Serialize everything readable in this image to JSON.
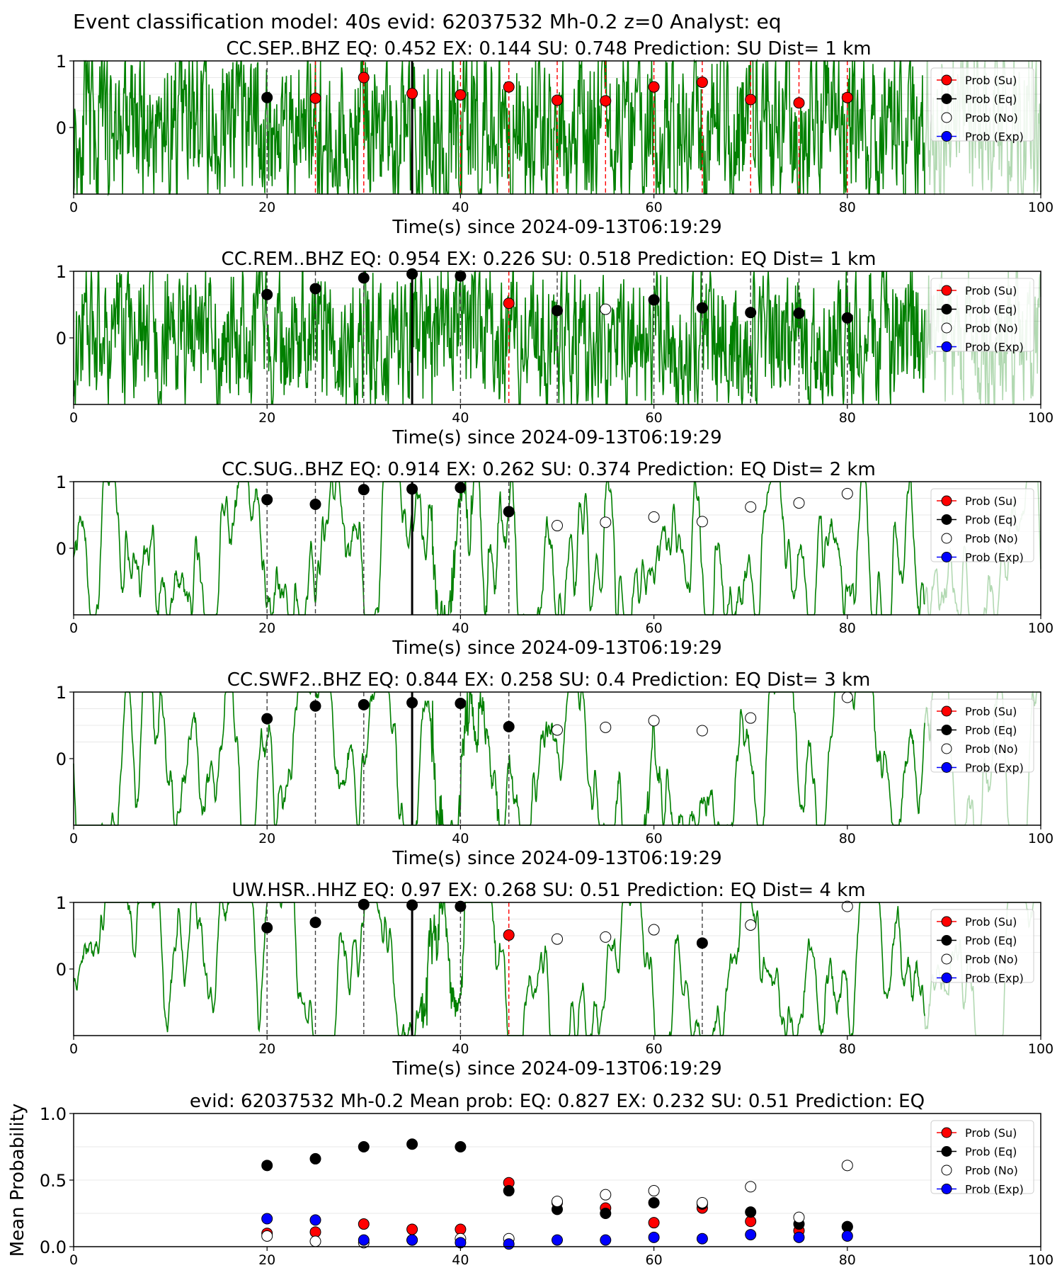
{
  "figure": {
    "suptitle": "Event classification model: 40s evid: 62037532 Mh-0.2 z=0 Analyst: eq"
  },
  "colors": {
    "waveform": "#008000",
    "su": "#ff0000",
    "eq": "#000000",
    "no": "#ffffff",
    "exp": "#0000ff",
    "pick": "#000000",
    "window_eq": "#404040",
    "window_su": "#ff0000"
  },
  "legend_labels": [
    "Prob (Su)",
    "Prob (Eq)",
    "Prob (No)",
    "Prob (Exp)"
  ],
  "chart_data": [
    {
      "type": "scatter",
      "title": "CC.SEP..BHZ   EQ: 0.452  EX: 0.144  SU: 0.748   Prediction: SU    Dist= 1 km",
      "xlabel": "Time(s) since 2024-09-13T06:19:29",
      "ylabel": "",
      "xlim": [
        0,
        100
      ],
      "ylim": [
        -1,
        1
      ],
      "yticks": [
        0,
        1
      ],
      "xticks": [
        0,
        20,
        40,
        60,
        80,
        100
      ],
      "legend": "right",
      "pick_time": 35,
      "waveform": {
        "seed": 11,
        "amp": 0.07,
        "smooth": 0.5,
        "bursts": [
          {
            "t": 24.5,
            "amp": 0.9,
            "decay": 4.5
          },
          {
            "t": 37.5,
            "amp": 0.75,
            "decay": 4.0
          },
          {
            "t": 87,
            "amp": 0.35,
            "decay": 5
          }
        ]
      },
      "windows": [
        {
          "t": 20,
          "cls": "eq"
        },
        {
          "t": 25,
          "cls": "su"
        },
        {
          "t": 30,
          "cls": "su"
        },
        {
          "t": 35,
          "cls": "su"
        },
        {
          "t": 40,
          "cls": "su"
        },
        {
          "t": 45,
          "cls": "su"
        },
        {
          "t": 50,
          "cls": "su"
        },
        {
          "t": 55,
          "cls": "su"
        },
        {
          "t": 60,
          "cls": "su"
        },
        {
          "t": 65,
          "cls": "su"
        },
        {
          "t": 70,
          "cls": "su"
        },
        {
          "t": 75,
          "cls": "su"
        },
        {
          "t": 80,
          "cls": "su"
        }
      ],
      "points": [
        {
          "t": 20,
          "p": 0.45,
          "cls": "eq"
        },
        {
          "t": 25,
          "p": 0.44,
          "cls": "su"
        },
        {
          "t": 30,
          "p": 0.75,
          "cls": "su"
        },
        {
          "t": 35,
          "p": 0.51,
          "cls": "su"
        },
        {
          "t": 40,
          "p": 0.49,
          "cls": "su"
        },
        {
          "t": 45,
          "p": 0.61,
          "cls": "su"
        },
        {
          "t": 50,
          "p": 0.41,
          "cls": "su"
        },
        {
          "t": 55,
          "p": 0.4,
          "cls": "su"
        },
        {
          "t": 60,
          "p": 0.61,
          "cls": "su"
        },
        {
          "t": 65,
          "p": 0.68,
          "cls": "su"
        },
        {
          "t": 70,
          "p": 0.42,
          "cls": "su"
        },
        {
          "t": 75,
          "p": 0.37,
          "cls": "su"
        },
        {
          "t": 80,
          "p": 0.45,
          "cls": "su"
        }
      ]
    },
    {
      "type": "scatter",
      "title": "CC.REM..BHZ   EQ: 0.954  EX: 0.226  SU: 0.518   Prediction: EQ    Dist= 1 km",
      "xlabel": "Time(s) since 2024-09-13T06:19:29",
      "ylabel": "",
      "xlim": [
        0,
        100
      ],
      "ylim": [
        -1,
        1
      ],
      "yticks": [
        0,
        1
      ],
      "xticks": [
        0,
        20,
        40,
        60,
        80,
        100
      ],
      "legend": "right",
      "pick_time": 35,
      "waveform": {
        "seed": 23,
        "amp": 0.06,
        "smooth": 0.5,
        "bursts": [
          {
            "t": 25,
            "amp": 0.45,
            "decay": 4
          },
          {
            "t": 36,
            "amp": 1.0,
            "decay": 3.5
          },
          {
            "t": 60,
            "amp": 0.12,
            "decay": 6
          },
          {
            "t": 86,
            "amp": 0.35,
            "decay": 4
          }
        ]
      },
      "windows": [
        {
          "t": 20,
          "cls": "eq"
        },
        {
          "t": 25,
          "cls": "eq"
        },
        {
          "t": 30,
          "cls": "eq"
        },
        {
          "t": 35,
          "cls": "eq"
        },
        {
          "t": 40,
          "cls": "eq"
        },
        {
          "t": 45,
          "cls": "su"
        },
        {
          "t": 50,
          "cls": "eq"
        },
        {
          "t": 60,
          "cls": "eq"
        },
        {
          "t": 65,
          "cls": "eq"
        },
        {
          "t": 70,
          "cls": "eq"
        },
        {
          "t": 75,
          "cls": "eq"
        },
        {
          "t": 80,
          "cls": "eq"
        }
      ],
      "points": [
        {
          "t": 20,
          "p": 0.65,
          "cls": "eq"
        },
        {
          "t": 25,
          "p": 0.74,
          "cls": "eq"
        },
        {
          "t": 30,
          "p": 0.9,
          "cls": "eq"
        },
        {
          "t": 35,
          "p": 0.96,
          "cls": "eq"
        },
        {
          "t": 40,
          "p": 0.93,
          "cls": "eq"
        },
        {
          "t": 45,
          "p": 0.52,
          "cls": "su"
        },
        {
          "t": 50,
          "p": 0.41,
          "cls": "eq"
        },
        {
          "t": 55,
          "p": 0.43,
          "cls": "no"
        },
        {
          "t": 60,
          "p": 0.57,
          "cls": "eq"
        },
        {
          "t": 65,
          "p": 0.45,
          "cls": "eq"
        },
        {
          "t": 70,
          "p": 0.38,
          "cls": "eq"
        },
        {
          "t": 75,
          "p": 0.37,
          "cls": "eq"
        },
        {
          "t": 80,
          "p": 0.3,
          "cls": "eq"
        }
      ]
    },
    {
      "type": "scatter",
      "title": "CC.SUG..BHZ   EQ: 0.914  EX: 0.262  SU: 0.374   Prediction: EQ    Dist= 2 km",
      "xlabel": "Time(s) since 2024-09-13T06:19:29",
      "ylabel": "",
      "xlim": [
        0,
        100
      ],
      "ylim": [
        -1,
        1
      ],
      "yticks": [
        0,
        1
      ],
      "xticks": [
        0,
        20,
        40,
        60,
        80,
        100
      ],
      "legend": "right",
      "pick_time": 35,
      "waveform": {
        "seed": 37,
        "amp": 0.12,
        "smooth": 0.85,
        "bursts": [
          {
            "t": 37,
            "amp": 0.8,
            "decay": 4
          }
        ]
      },
      "windows": [
        {
          "t": 20,
          "cls": "eq"
        },
        {
          "t": 25,
          "cls": "eq"
        },
        {
          "t": 30,
          "cls": "eq"
        },
        {
          "t": 35,
          "cls": "eq"
        },
        {
          "t": 40,
          "cls": "eq"
        },
        {
          "t": 45,
          "cls": "eq"
        }
      ],
      "points": [
        {
          "t": 20,
          "p": 0.73,
          "cls": "eq"
        },
        {
          "t": 25,
          "p": 0.66,
          "cls": "eq"
        },
        {
          "t": 30,
          "p": 0.88,
          "cls": "eq"
        },
        {
          "t": 35,
          "p": 0.89,
          "cls": "eq"
        },
        {
          "t": 40,
          "p": 0.91,
          "cls": "eq"
        },
        {
          "t": 45,
          "p": 0.55,
          "cls": "eq"
        },
        {
          "t": 50,
          "p": 0.34,
          "cls": "no"
        },
        {
          "t": 55,
          "p": 0.39,
          "cls": "no"
        },
        {
          "t": 60,
          "p": 0.47,
          "cls": "no"
        },
        {
          "t": 65,
          "p": 0.4,
          "cls": "no"
        },
        {
          "t": 70,
          "p": 0.62,
          "cls": "no"
        },
        {
          "t": 75,
          "p": 0.68,
          "cls": "no"
        },
        {
          "t": 80,
          "p": 0.82,
          "cls": "no"
        }
      ]
    },
    {
      "type": "scatter",
      "title": "CC.SWF2..BHZ   EQ: 0.844  EX: 0.258  SU: 0.4   Prediction: EQ    Dist= 3 km",
      "xlabel": "Time(s) since 2024-09-13T06:19:29",
      "ylabel": "",
      "xlim": [
        0,
        100
      ],
      "ylim": [
        -1,
        1
      ],
      "yticks": [
        0,
        1
      ],
      "xticks": [
        0,
        20,
        40,
        60,
        80,
        100
      ],
      "legend": "right",
      "pick_time": 35,
      "waveform": {
        "seed": 53,
        "amp": 0.22,
        "smooth": 0.9,
        "bursts": [
          {
            "t": 37,
            "amp": 0.85,
            "decay": 4
          },
          {
            "t": 58.5,
            "amp": 0.5,
            "decay": 1.2
          }
        ]
      },
      "windows": [
        {
          "t": 20,
          "cls": "eq"
        },
        {
          "t": 25,
          "cls": "eq"
        },
        {
          "t": 30,
          "cls": "eq"
        },
        {
          "t": 35,
          "cls": "eq"
        },
        {
          "t": 40,
          "cls": "eq"
        },
        {
          "t": 45,
          "cls": "eq"
        }
      ],
      "points": [
        {
          "t": 20,
          "p": 0.6,
          "cls": "eq"
        },
        {
          "t": 25,
          "p": 0.79,
          "cls": "eq"
        },
        {
          "t": 30,
          "p": 0.81,
          "cls": "eq"
        },
        {
          "t": 35,
          "p": 0.84,
          "cls": "eq"
        },
        {
          "t": 40,
          "p": 0.83,
          "cls": "eq"
        },
        {
          "t": 45,
          "p": 0.48,
          "cls": "eq"
        },
        {
          "t": 50,
          "p": 0.43,
          "cls": "no"
        },
        {
          "t": 55,
          "p": 0.47,
          "cls": "no"
        },
        {
          "t": 60,
          "p": 0.57,
          "cls": "no"
        },
        {
          "t": 65,
          "p": 0.42,
          "cls": "no"
        },
        {
          "t": 70,
          "p": 0.61,
          "cls": "no"
        },
        {
          "t": 80,
          "p": 0.92,
          "cls": "no"
        }
      ]
    },
    {
      "type": "scatter",
      "title": "UW.HSR..HHZ   EQ: 0.97  EX: 0.268  SU: 0.51   Prediction: EQ    Dist= 4 km",
      "xlabel": "Time(s) since 2024-09-13T06:19:29",
      "ylabel": "",
      "xlim": [
        0,
        100
      ],
      "ylim": [
        -1,
        1
      ],
      "yticks": [
        0,
        1
      ],
      "xticks": [
        0,
        20,
        40,
        60,
        80,
        100
      ],
      "legend": "right",
      "pick_time": 35,
      "waveform": {
        "seed": 71,
        "amp": 0.2,
        "smooth": 0.9,
        "bursts": [
          {
            "t": 36,
            "amp": 0.7,
            "decay": 4
          }
        ]
      },
      "windows": [
        {
          "t": 20,
          "cls": "eq"
        },
        {
          "t": 25,
          "cls": "eq"
        },
        {
          "t": 30,
          "cls": "eq"
        },
        {
          "t": 35,
          "cls": "eq"
        },
        {
          "t": 40,
          "cls": "eq"
        },
        {
          "t": 45,
          "cls": "su"
        },
        {
          "t": 65,
          "cls": "eq"
        }
      ],
      "points": [
        {
          "t": 20,
          "p": 0.62,
          "cls": "eq"
        },
        {
          "t": 25,
          "p": 0.7,
          "cls": "eq"
        },
        {
          "t": 30,
          "p": 0.97,
          "cls": "eq"
        },
        {
          "t": 35,
          "p": 0.96,
          "cls": "eq"
        },
        {
          "t": 40,
          "p": 0.94,
          "cls": "eq"
        },
        {
          "t": 45,
          "p": 0.51,
          "cls": "su"
        },
        {
          "t": 50,
          "p": 0.45,
          "cls": "no"
        },
        {
          "t": 55,
          "p": 0.48,
          "cls": "no"
        },
        {
          "t": 60,
          "p": 0.59,
          "cls": "no"
        },
        {
          "t": 65,
          "p": 0.39,
          "cls": "eq"
        },
        {
          "t": 70,
          "p": 0.66,
          "cls": "no"
        },
        {
          "t": 80,
          "p": 0.94,
          "cls": "no"
        }
      ]
    },
    {
      "type": "scatter",
      "title": "evid: 62037532  Mh-0.2   Mean prob:   EQ: 0.827  EX: 0.232  SU: 0.51   Prediction: EQ",
      "xlabel": "",
      "ylabel": "Mean Probability",
      "xlim": [
        0,
        100
      ],
      "ylim": [
        0,
        1
      ],
      "yticks": [
        0,
        0.5,
        1
      ],
      "ytick_labels": [
        "0.0",
        "0.5",
        "1.0"
      ],
      "xticks": [
        0,
        20,
        40,
        60,
        80,
        100
      ],
      "legend": "right",
      "x": [
        20,
        25,
        30,
        35,
        40,
        45,
        50,
        55,
        60,
        65,
        70,
        75,
        80
      ],
      "series": [
        {
          "name": "Prob (Su)",
          "cls": "su",
          "values": [
            0.1,
            0.11,
            0.17,
            0.13,
            0.13,
            0.48,
            0.33,
            0.29,
            0.18,
            0.29,
            0.19,
            0.12,
            0.15
          ]
        },
        {
          "name": "Prob (Eq)",
          "cls": "eq",
          "values": [
            0.61,
            0.66,
            0.75,
            0.77,
            0.75,
            0.42,
            0.28,
            0.25,
            0.33,
            0.32,
            0.26,
            0.17,
            0.15
          ]
        },
        {
          "name": "Prob (No)",
          "cls": "no",
          "values": [
            0.08,
            0.04,
            0.03,
            0.05,
            0.06,
            0.06,
            0.34,
            0.39,
            0.42,
            0.33,
            0.45,
            0.22,
            0.61
          ]
        },
        {
          "name": "Prob (Exp)",
          "cls": "exp",
          "values": [
            0.21,
            0.2,
            0.05,
            0.05,
            0.03,
            0.02,
            0.05,
            0.05,
            0.07,
            0.06,
            0.09,
            0.07,
            0.08
          ]
        }
      ]
    }
  ]
}
